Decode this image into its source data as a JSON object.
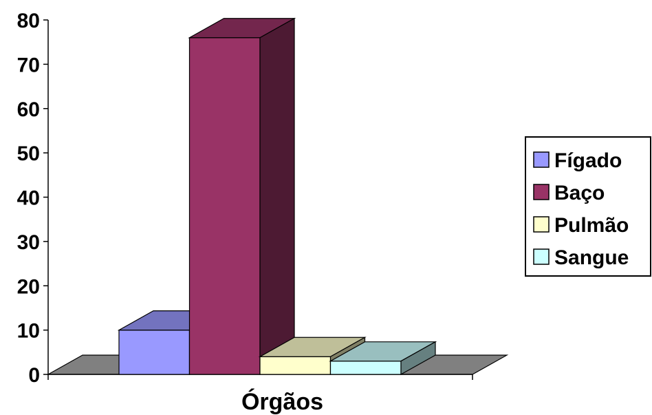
{
  "chart_data": {
    "type": "bar",
    "style": "3d-column",
    "categories": [
      "Órgãos"
    ],
    "xlabel": "Órgãos",
    "ylabel": "",
    "title": "",
    "ylim": [
      0,
      80
    ],
    "yticks": [
      0,
      10,
      20,
      30,
      40,
      50,
      60,
      70,
      80
    ],
    "grid": false,
    "legend_position": "right",
    "series": [
      {
        "name": "Fígado",
        "values": [
          10
        ],
        "color": "#9999ff"
      },
      {
        "name": "Baço",
        "values": [
          76
        ],
        "color": "#993366"
      },
      {
        "name": "Pulmão",
        "values": [
          4
        ],
        "color": "#ffffcc"
      },
      {
        "name": "Sangue",
        "values": [
          3
        ],
        "color": "#ccffff"
      }
    ]
  }
}
